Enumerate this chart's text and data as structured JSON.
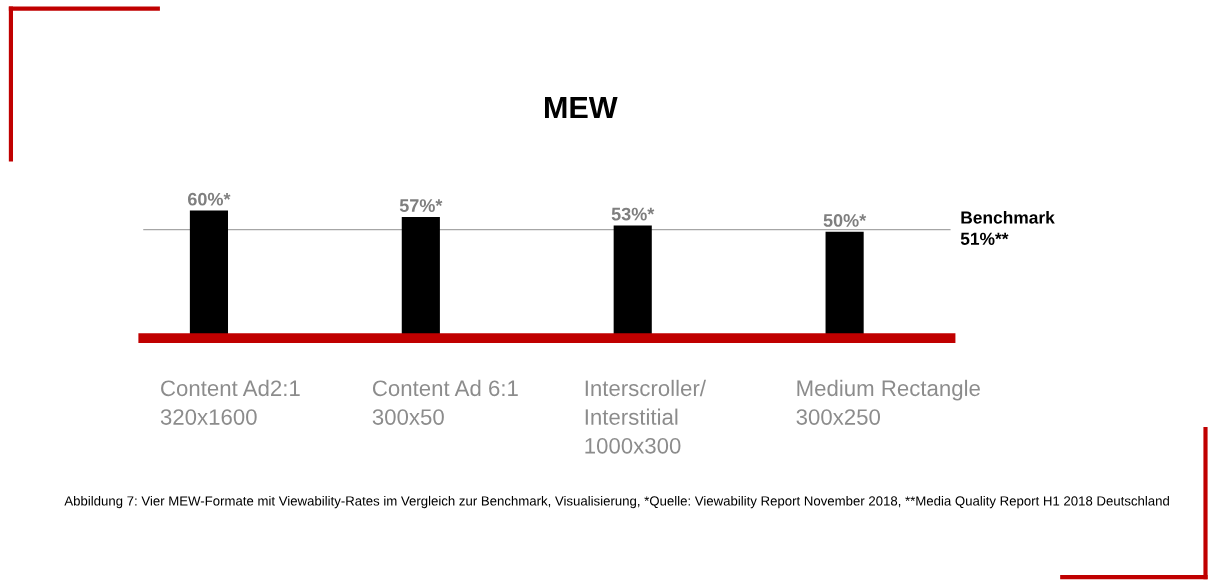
{
  "chart_data": {
    "type": "bar",
    "title": "MEW",
    "categories": [
      "Content Ad2:1\n320x1600",
      "Content Ad 6:1\n300x50",
      "Interscroller/\nInterstitial\n1000x300",
      "Medium Rectangle\n300x250"
    ],
    "values": [
      60,
      57,
      53,
      50
    ],
    "color": "#000000",
    "value_labels": [
      "60%*",
      "57%*",
      "53%*",
      "50%*"
    ],
    "tick_labels": "x",
    "grid": false,
    "ref_lines": [
      {
        "axis": "y",
        "value": 51,
        "label": "Benchmark\n51%**",
        "color": "#a6a6a6"
      }
    ],
    "annotations": [
      "Abbildung 7: Vier MEW-Formate mit Viewability-Rates im Vergleich zur Benchmark, Visualisierung, *Quelle: Viewability Report November 2018, **Media Quality Report H1 2018 Deutschland"
    ]
  }
}
